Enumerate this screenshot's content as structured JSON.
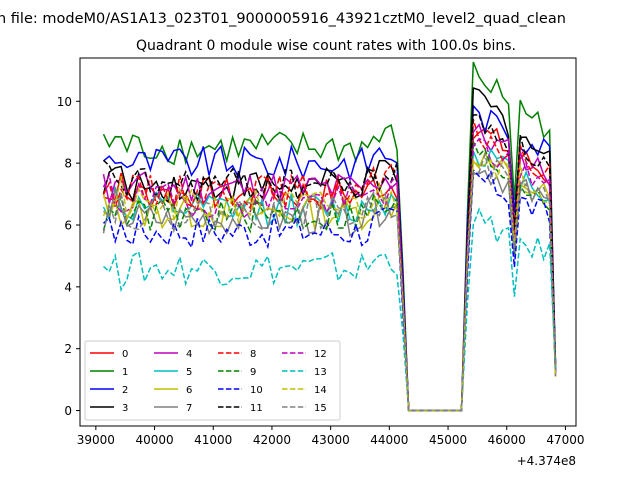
{
  "figure": {
    "suptitle": "n file: modeM0/AS1A13_023T01_9000005916_43921cztM0_level2_quad_clean",
    "title": "Quadrant 0 module wise count rates with 100.0s bins.",
    "offset_text": "+4.374e8"
  },
  "chart_data": {
    "type": "line",
    "title": "Quadrant 0 module wise count rates with 100.0s bins.",
    "xlabel": "",
    "ylabel": "",
    "x_offset": 437400000,
    "xlim": [
      38730,
      47180
    ],
    "ylim": [
      -0.5,
      11.4
    ],
    "xticks": [
      39000,
      40000,
      41000,
      42000,
      43000,
      44000,
      45000,
      46000,
      47000
    ],
    "xtick_labels": [
      "39000",
      "40000",
      "41000",
      "42000",
      "43000",
      "44000",
      "45000",
      "46000",
      "47000"
    ],
    "yticks": [
      0,
      2,
      4,
      6,
      8,
      10
    ],
    "ytick_labels": [
      "0",
      "2",
      "4",
      "6",
      "8",
      "10"
    ],
    "grid": false,
    "legend_position": "lower-left",
    "legend_columns": 4,
    "bin_width": 100,
    "x_start": 39130,
    "gap": {
      "drop_end": 44330,
      "rise_start": 45230
    },
    "series": [
      {
        "name": "0",
        "color": "#ff0000",
        "dash": "solid",
        "level": 7.0,
        "peak": 9.2
      },
      {
        "name": "1",
        "color": "#008000",
        "dash": "solid",
        "level": 8.5,
        "peak": 10.9
      },
      {
        "name": "2",
        "color": "#0000ff",
        "dash": "solid",
        "level": 8.0,
        "peak": 9.6
      },
      {
        "name": "3",
        "color": "#000000",
        "dash": "solid",
        "level": 7.3,
        "peak": 10.3
      },
      {
        "name": "4",
        "color": "#bf00bf",
        "dash": "solid",
        "level": 7.2,
        "peak": 9.0
      },
      {
        "name": "5",
        "color": "#00bfbf",
        "dash": "solid",
        "level": 6.5,
        "peak": 8.5
      },
      {
        "name": "6",
        "color": "#bfbf00",
        "dash": "solid",
        "level": 6.4,
        "peak": 8.3
      },
      {
        "name": "7",
        "color": "#808080",
        "dash": "solid",
        "level": 6.2,
        "peak": 8.0
      },
      {
        "name": "8",
        "color": "#ff0000",
        "dash": "dashed",
        "level": 7.1,
        "peak": 9.0
      },
      {
        "name": "9",
        "color": "#008000",
        "dash": "dashed",
        "level": 6.3,
        "peak": 8.4
      },
      {
        "name": "10",
        "color": "#0000ff",
        "dash": "dashed",
        "level": 5.8,
        "peak": 7.6
      },
      {
        "name": "11",
        "color": "#000000",
        "dash": "dashed",
        "level": 7.3,
        "peak": 9.5
      },
      {
        "name": "12",
        "color": "#bf00bf",
        "dash": "dashed",
        "level": 6.8,
        "peak": 8.6
      },
      {
        "name": "13",
        "color": "#00bfbf",
        "dash": "dashed",
        "level": 4.6,
        "peak": 6.2
      },
      {
        "name": "14",
        "color": "#bfbf00",
        "dash": "dashed",
        "level": 6.6,
        "peak": 8.4
      },
      {
        "name": "15",
        "color": "#808080",
        "dash": "dashed",
        "level": 6.4,
        "peak": 8.1
      }
    ]
  }
}
